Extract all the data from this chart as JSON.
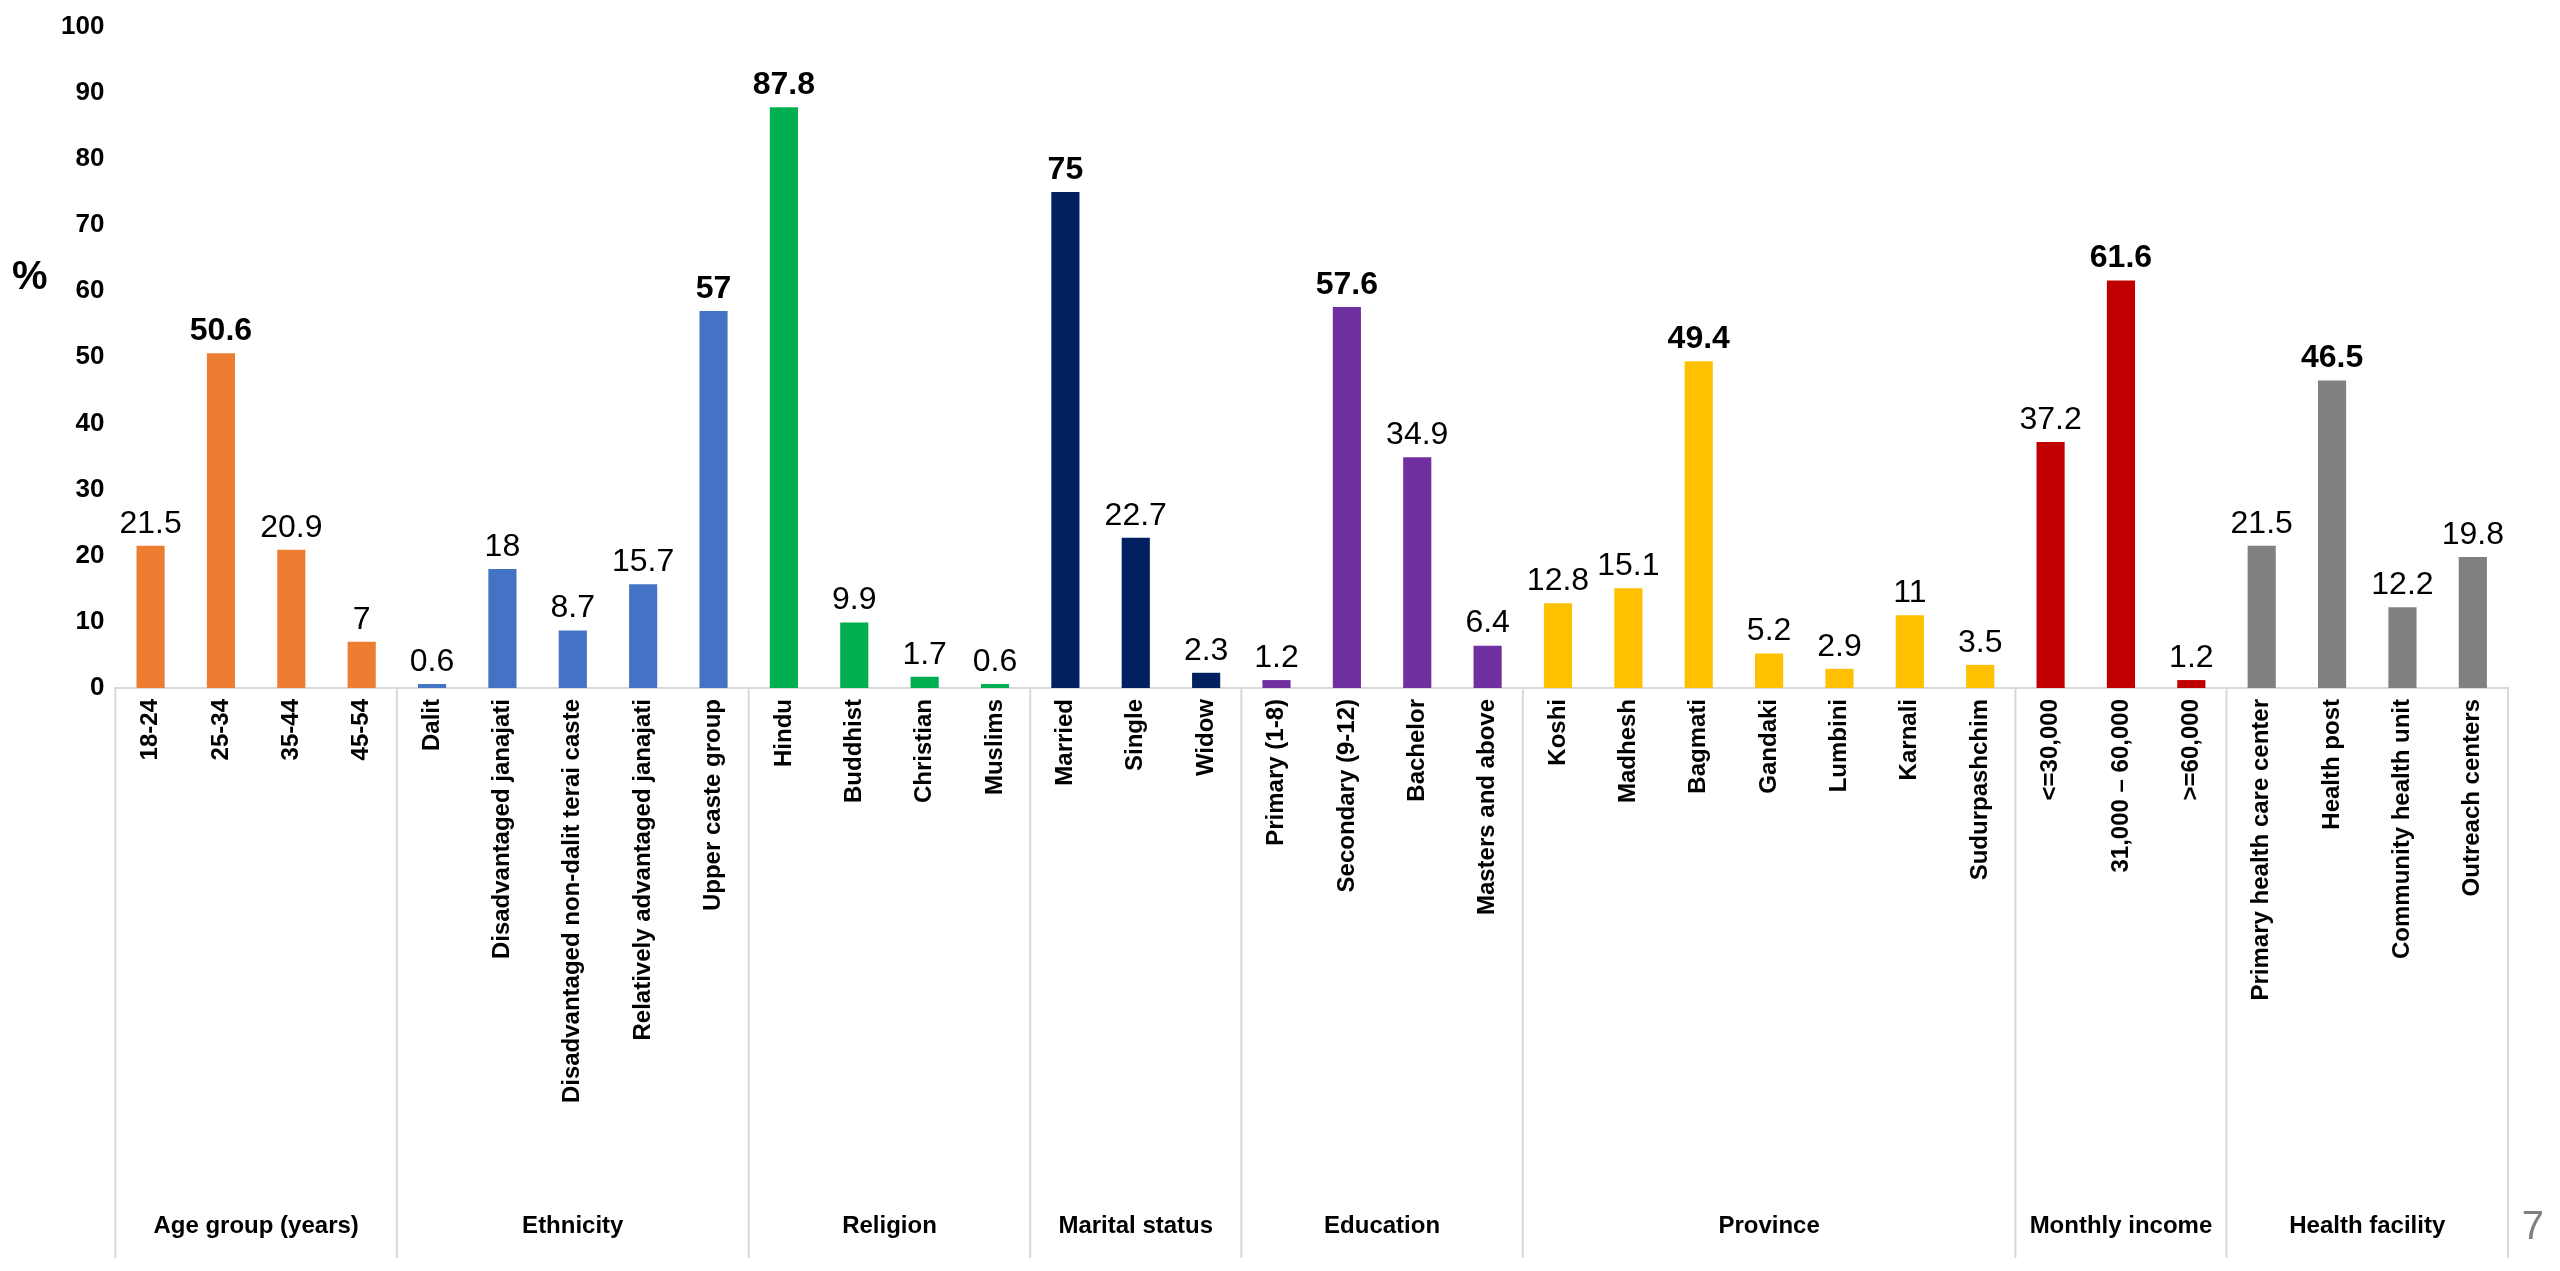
{
  "chart_data": {
    "type": "bar",
    "ylabel": "%",
    "categories": [
      "18-24",
      "25-34",
      "35-44",
      "45-54",
      "Dalit",
      "Disadvantaged janajati",
      "Disadvantaged non-dalit terai caste",
      "Relatively advantaged janajati",
      "Upper caste group",
      "Hindu",
      "Buddhist",
      "Christian",
      "Muslims",
      "Married",
      "Single",
      "Widow",
      "Primary (1-8)",
      "Secondary (9-12)",
      "Bachelor",
      "Masters and above",
      "Koshi",
      "Madhesh",
      "Bagmati",
      "Gandaki",
      "Lumbini",
      "Karnali",
      "Sudurpashchim",
      "<=30,000",
      "31,000 – 60,000",
      ">=60,000",
      "Primary health care center",
      "Health post",
      "Community health unit",
      "Outreach centers"
    ],
    "series": [
      {
        "color": "#ed7d31",
        "values": [
          21.5,
          50.6,
          20.9,
          7,
          null,
          null,
          null,
          null,
          null,
          null,
          null,
          null,
          null,
          null,
          null,
          null,
          null,
          null,
          null,
          null,
          null,
          null,
          null,
          null,
          null,
          null,
          null,
          null,
          null,
          null,
          null,
          null,
          null,
          null
        ]
      },
      {
        "color": "#4472c4",
        "values": [
          null,
          null,
          null,
          null,
          0.6,
          18,
          8.7,
          15.7,
          57,
          null,
          null,
          null,
          null,
          null,
          null,
          null,
          null,
          null,
          null,
          null,
          null,
          null,
          null,
          null,
          null,
          null,
          null,
          null,
          null,
          null,
          null,
          null,
          null,
          null
        ]
      },
      {
        "color": "#00b050",
        "values": [
          null,
          null,
          null,
          null,
          null,
          null,
          null,
          null,
          null,
          87.8,
          9.9,
          1.7,
          0.6,
          null,
          null,
          null,
          null,
          null,
          null,
          null,
          null,
          null,
          null,
          null,
          null,
          null,
          null,
          null,
          null,
          null,
          null,
          null,
          null,
          null
        ]
      },
      {
        "color": "#002060",
        "values": [
          null,
          null,
          null,
          null,
          null,
          null,
          null,
          null,
          null,
          null,
          null,
          null,
          null,
          75,
          22.7,
          2.3,
          null,
          null,
          null,
          null,
          null,
          null,
          null,
          null,
          null,
          null,
          null,
          null,
          null,
          null,
          null,
          null,
          null,
          null
        ]
      },
      {
        "color": "#7030a0",
        "values": [
          null,
          null,
          null,
          null,
          null,
          null,
          null,
          null,
          null,
          null,
          null,
          null,
          null,
          null,
          null,
          null,
          1.2,
          57.6,
          34.9,
          6.4,
          null,
          null,
          null,
          null,
          null,
          null,
          null,
          null,
          null,
          null,
          null,
          null,
          null,
          null
        ]
      },
      {
        "color": "#ffc000",
        "values": [
          null,
          null,
          null,
          null,
          null,
          null,
          null,
          null,
          null,
          null,
          null,
          null,
          null,
          null,
          null,
          null,
          null,
          null,
          null,
          null,
          12.8,
          15.1,
          49.4,
          5.2,
          2.9,
          11,
          3.5,
          null,
          null,
          null,
          null,
          null,
          null,
          null
        ]
      },
      {
        "color": "#c00000",
        "values": [
          null,
          null,
          null,
          null,
          null,
          null,
          null,
          null,
          null,
          null,
          null,
          null,
          null,
          null,
          null,
          null,
          null,
          null,
          null,
          null,
          null,
          null,
          null,
          null,
          null,
          null,
          null,
          37.2,
          61.6,
          1.2,
          null,
          null,
          null,
          null
        ]
      },
      {
        "color": "#808080",
        "values": [
          null,
          null,
          null,
          null,
          null,
          null,
          null,
          null,
          null,
          null,
          null,
          null,
          null,
          null,
          null,
          null,
          null,
          null,
          null,
          null,
          null,
          null,
          null,
          null,
          null,
          null,
          null,
          null,
          null,
          null,
          21.5,
          46.5,
          12.2,
          19.8
        ]
      }
    ],
    "ylim": [
      0,
      100
    ],
    "yticks": [
      0,
      10,
      20,
      30,
      40,
      50,
      60,
      70,
      80,
      90,
      100
    ],
    "grid": false,
    "legend": false,
    "data_labels": true,
    "annotations": [
      "Age group (years)",
      "Ethnicity",
      "Religion",
      "Marital status",
      "Education",
      "Province",
      "Monthly income",
      "Health facility",
      "7"
    ]
  }
}
